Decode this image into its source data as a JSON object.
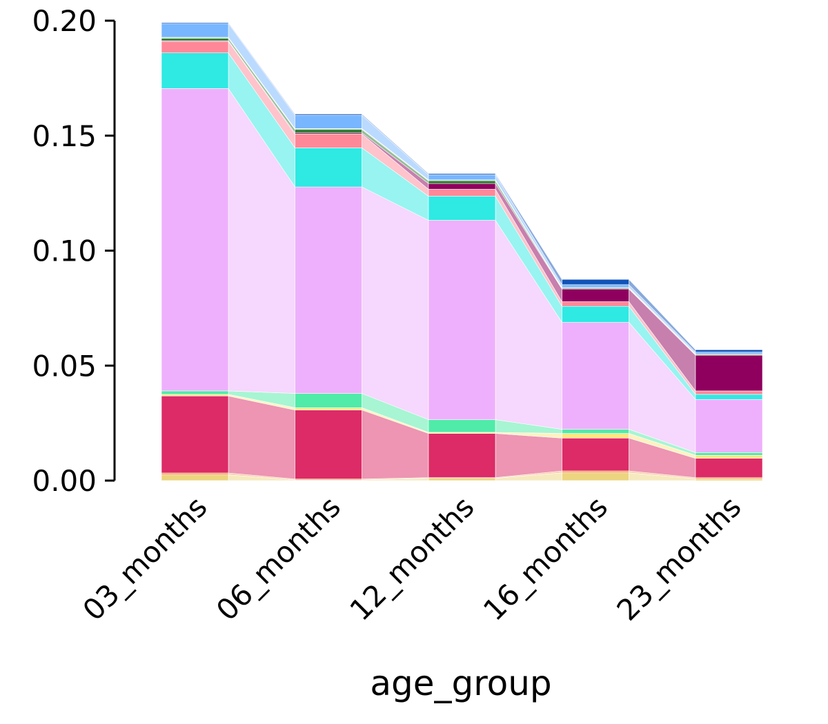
{
  "chart_data": {
    "type": "bar",
    "stacked": true,
    "flows_between_bars": true,
    "title": "",
    "xlabel": "age_group",
    "ylabel": "",
    "ylim": [
      0,
      0.2
    ],
    "yticks": [
      "0.00",
      "0.05",
      "0.10",
      "0.15",
      "0.20"
    ],
    "ytick_values": [
      0,
      0.05,
      0.1,
      0.15,
      0.2
    ],
    "grid": false,
    "legend": "none",
    "categories": [
      "03_months",
      "06_months",
      "12_months",
      "16_months",
      "23_months"
    ],
    "series": [
      {
        "color": "#ecd580",
        "values": [
          0.0025,
          0.0003,
          0.001,
          0.0034,
          0.0008
        ]
      },
      {
        "color": "#f3a05a",
        "values": [
          0.0008,
          0.0004,
          0.0003,
          0.0008,
          0.0005
        ]
      },
      {
        "color": "#dc2b66",
        "values": [
          0.0335,
          0.03,
          0.0192,
          0.0143,
          0.0084
        ]
      },
      {
        "color": "#ffe680",
        "values": [
          0.0007,
          0.001,
          0.0005,
          0.002,
          0.0013
        ]
      },
      {
        "color": "#50eba8",
        "values": [
          0.0015,
          0.0062,
          0.0055,
          0.0018,
          0.0012
        ]
      },
      {
        "color": "#eeb0fc",
        "values": [
          0.1315,
          0.0898,
          0.0867,
          0.0465,
          0.0231
        ]
      },
      {
        "color": "#2fe9e3",
        "values": [
          0.0155,
          0.017,
          0.0105,
          0.007,
          0.0022
        ]
      },
      {
        "color": "#ff8898",
        "values": [
          0.005,
          0.006,
          0.003,
          0.002,
          0.0015
        ]
      },
      {
        "color": "#8f005e",
        "values": [
          0.0003,
          0.0005,
          0.0025,
          0.0055,
          0.0155
        ]
      },
      {
        "color": "#2e7d32",
        "values": [
          0.001,
          0.0015,
          0.0012,
          0.0003,
          0.0003
        ]
      },
      {
        "color": "#a5d6a7",
        "values": [
          0.0005,
          0.0004,
          0.0004,
          0.0004,
          0.0003
        ]
      },
      {
        "color": "#78b6ff",
        "values": [
          0.006,
          0.0058,
          0.0022,
          0.0012,
          0.0008
        ]
      },
      {
        "color": "#1153b8",
        "values": [
          0.0004,
          0.0005,
          0.0005,
          0.0023,
          0.001
        ]
      }
    ]
  }
}
